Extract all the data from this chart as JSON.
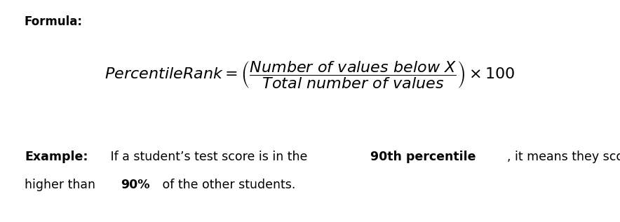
{
  "background_color": "#ffffff",
  "formula_label": "Formula:",
  "formula_label_fontsize": 12,
  "formula_latex": "$\\mathit{PercentileRank} = \\left( \\dfrac{\\mathit{Number\\ of\\ values\\ below\\ X}}{\\mathit{Total\\ number\\ of\\ values}} \\right) \\times 100$",
  "formula_fontsize": 16,
  "example_fontsize": 12.5,
  "line1_segments": [
    {
      "text": "Example:",
      "bold": true
    },
    {
      "text": " If a student’s test score is in the ",
      "bold": false
    },
    {
      "text": "90th percentile",
      "bold": true
    },
    {
      "text": ", it means they scored",
      "bold": false
    }
  ],
  "line2_segments": [
    {
      "text": "higher than ",
      "bold": false
    },
    {
      "text": "90%",
      "bold": true
    },
    {
      "text": " of the other students.",
      "bold": false
    }
  ]
}
